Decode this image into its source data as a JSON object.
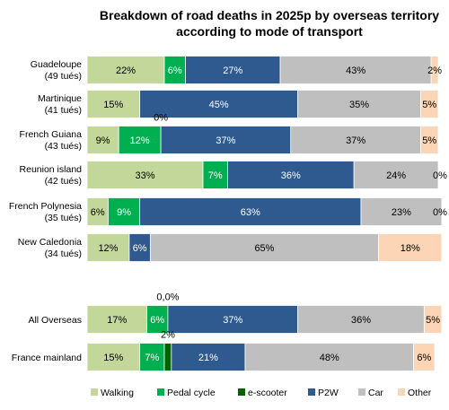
{
  "chart_data": {
    "type": "bar",
    "stacked": true,
    "orientation": "horizontal",
    "percent_stacked": true,
    "title_line1": "Breakdown of road deaths in 2025p by overseas territory",
    "title_line2": "according to mode of transport",
    "categories": [
      {
        "name": "Guadeloupe",
        "sub": "(49 tués)"
      },
      {
        "name": "Martinique",
        "sub": "(41 tués)"
      },
      {
        "name": "French Guiana",
        "sub": "(43 tués)"
      },
      {
        "name": "Reunion island",
        "sub": "(42 tués)"
      },
      {
        "name": "French Polynesia",
        "sub": "(35 tués)"
      },
      {
        "name": "New Caledonia",
        "sub": "(34 tués)"
      },
      {
        "name": "All Overseas",
        "sub": ""
      },
      {
        "name": "France mainland",
        "sub": ""
      }
    ],
    "series": [
      {
        "name": "Walking",
        "color": "#c4d79b",
        "text_color": "#000000",
        "values": [
          22,
          15,
          9,
          33,
          6,
          12,
          17,
          15
        ],
        "labels": [
          "22%",
          "15%",
          "9%",
          "33%",
          "6%",
          "12%",
          "17%",
          "15%"
        ]
      },
      {
        "name": "Pedal cycle",
        "color": "#00b050",
        "text_color": "#ffffff",
        "values": [
          6,
          0,
          12,
          7,
          9,
          0,
          6,
          7
        ],
        "labels": [
          "6%",
          "",
          "12%",
          "7%",
          "9%",
          "",
          "6%",
          "7%"
        ]
      },
      {
        "name": "e-scooter",
        "color": "#006400",
        "text_color": "#000000",
        "values": [
          0,
          0,
          0,
          0,
          0,
          0,
          0,
          2
        ],
        "labels": [
          "",
          "",
          "0%",
          "",
          "",
          "",
          "0,0%",
          "2%"
        ]
      },
      {
        "name": "P2W",
        "color": "#2e5a8f",
        "text_color": "#ffffff",
        "values": [
          27,
          45,
          37,
          36,
          63,
          6,
          37,
          21
        ],
        "labels": [
          "27%",
          "45%",
          "37%",
          "36%",
          "63%",
          "6%",
          "37%",
          "21%"
        ]
      },
      {
        "name": "Car",
        "color": "#bfbfbf",
        "text_color": "#000000",
        "values": [
          43,
          35,
          37,
          24,
          23,
          65,
          36,
          48
        ],
        "labels": [
          "43%",
          "35%",
          "37%",
          "24%",
          "23%",
          "65%",
          "36%",
          "48%"
        ]
      },
      {
        "name": "Other",
        "color": "#fbd5b5",
        "text_color": "#000000",
        "values": [
          2,
          5,
          5,
          0,
          0,
          18,
          5,
          6
        ],
        "labels": [
          "2%",
          "5%",
          "5%",
          "0%",
          "0%",
          "18%",
          "5%",
          "6%"
        ]
      }
    ],
    "xlim": [
      0,
      100
    ],
    "legend_position": "bottom",
    "grid": false
  }
}
